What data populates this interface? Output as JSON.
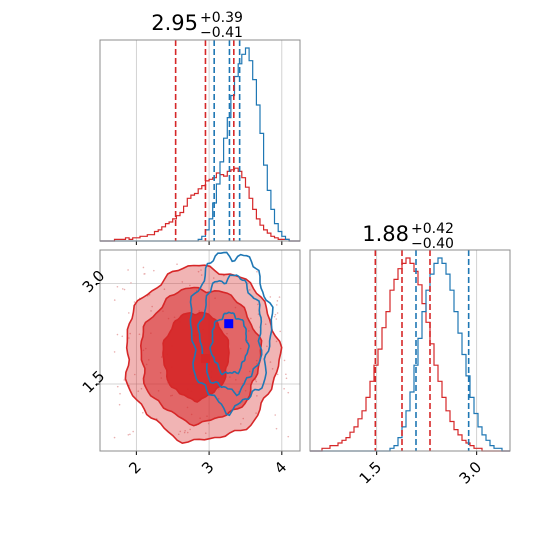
{
  "chart_data": {
    "type": "corner",
    "colors": {
      "red": "#d62728",
      "blue": "#1f77b4",
      "truth_marker": "#0000ff"
    },
    "grid": true,
    "parameters": [
      {
        "title": {
          "median": "2.95",
          "plus": "+0.39",
          "minus": "−0.41"
        },
        "range": [
          1.5,
          4.25
        ],
        "ticks": [
          2,
          3,
          4
        ],
        "tick_labels": [
          "2",
          "3",
          "4"
        ],
        "quantile_lines": {
          "red": [
            2.54,
            2.95,
            3.34
          ],
          "blue": [
            3.07,
            3.28,
            3.42
          ]
        },
        "histograms": {
          "red": {
            "edges_range": [
              1.5,
              4.25
            ],
            "counts": [
              0,
              0,
              0,
              0,
              1,
              1,
              1,
              2,
              1,
              2,
              2,
              3,
              3,
              4,
              4,
              6,
              7,
              9,
              11,
              12,
              14,
              16,
              18,
              22,
              27,
              29,
              30,
              33,
              35,
              38,
              39,
              40,
              43,
              42,
              41,
              44,
              45,
              46,
              44,
              40,
              34,
              27,
              20,
              14,
              10,
              7,
              5,
              3,
              2,
              1,
              1,
              1,
              0,
              0,
              0
            ]
          },
          "blue": {
            "edges_range": [
              1.5,
              4.25
            ],
            "counts": [
              0,
              0,
              0,
              0,
              0,
              0,
              0,
              0,
              0,
              0,
              0,
              0,
              0,
              0,
              0,
              0,
              0,
              0,
              0,
              0,
              0,
              0,
              0,
              0,
              0,
              0,
              0,
              1,
              3,
              7,
              14,
              24,
              36,
              50,
              65,
              78,
              92,
              104,
              112,
              118,
              122,
              114,
              102,
              86,
              68,
              48,
              32,
              20,
              11,
              6,
              3,
              1,
              0,
              0,
              0
            ]
          }
        }
      },
      {
        "title": {
          "median": "1.88",
          "plus": "+0.42",
          "minus": "−0.40"
        },
        "range": [
          0.5,
          3.5
        ],
        "ticks": [
          1.5,
          3.0
        ],
        "tick_labels": [
          "1.5",
          "3.0"
        ],
        "quantile_lines": {
          "red": [
            1.48,
            1.88,
            2.3
          ],
          "blue": [
            2.09,
            2.88
          ]
        },
        "histograms": {
          "red": {
            "edges_range": [
              0.5,
              3.5
            ],
            "counts": [
              0,
              0,
              0,
              1,
              1,
              2,
              2,
              3,
              4,
              5,
              7,
              9,
              12,
              15,
              20,
              26,
              32,
              38,
              46,
              52,
              60,
              64,
              68,
              70,
              72,
              70,
              67,
              62,
              55,
              48,
              40,
              32,
              26,
              20,
              15,
              11,
              8,
              6,
              4,
              3,
              2,
              1,
              1,
              0,
              0,
              0,
              0,
              0,
              0,
              0
            ]
          },
          "blue": {
            "edges_range": [
              0.5,
              3.5
            ],
            "counts": [
              0,
              0,
              0,
              0,
              0,
              0,
              0,
              0,
              0,
              0,
              0,
              0,
              0,
              0,
              0,
              0,
              0,
              0,
              0,
              0,
              1,
              2,
              5,
              9,
              15,
              22,
              32,
              42,
              52,
              60,
              66,
              70,
              72,
              70,
              66,
              60,
              52,
              44,
              36,
              28,
              20,
              14,
              9,
              6,
              4,
              2,
              1,
              1,
              0,
              0
            ]
          }
        }
      }
    ],
    "joint": {
      "x_range": [
        1.5,
        4.25
      ],
      "y_range": [
        0.5,
        3.5
      ],
      "x_ticks": [
        2,
        3,
        4
      ],
      "y_ticks": [
        1.5,
        3.0
      ],
      "x_tick_labels": [
        "2",
        "3",
        "4"
      ],
      "y_tick_labels": [
        "1.5",
        "3.0"
      ],
      "red_contours": [
        {
          "cx": 2.9,
          "cy": 1.95,
          "rx": 1.05,
          "ry": 1.3,
          "fill_opacity": 0.35
        },
        {
          "cx": 2.88,
          "cy": 1.93,
          "rx": 0.82,
          "ry": 1.0,
          "fill_opacity": 0.55
        },
        {
          "cx": 2.82,
          "cy": 1.92,
          "rx": 0.45,
          "ry": 0.65,
          "fill_opacity": 0.9
        }
      ],
      "blue_contours": [
        {
          "cx": 3.3,
          "cy": 2.3,
          "rx": 0.55,
          "ry": 1.15
        },
        {
          "cx": 3.3,
          "cy": 2.25,
          "rx": 0.42,
          "ry": 0.85
        },
        {
          "cx": 3.28,
          "cy": 2.1,
          "rx": 0.25,
          "ry": 0.45
        }
      ],
      "truth_points": [
        {
          "x": 3.27,
          "y": 2.4,
          "color": "#0000ff"
        },
        {
          "x": 2.95,
          "y": 1.88,
          "color": "#d62728"
        }
      ]
    }
  }
}
